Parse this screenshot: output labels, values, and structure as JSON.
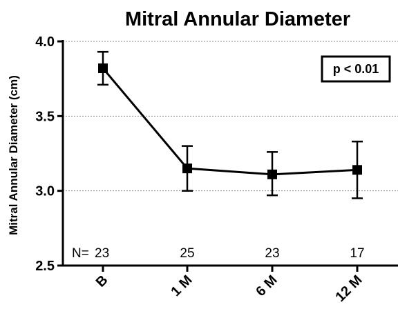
{
  "chart_data": {
    "type": "line",
    "title": "Mitral Annular Diameter",
    "xlabel": "",
    "ylabel": "Mitral Annular Diameter (cm)",
    "categories": [
      "B",
      "1 M",
      "6 M",
      "12 M"
    ],
    "series": [
      {
        "values": [
          3.82,
          3.15,
          3.11,
          3.14
        ],
        "error_low": [
          3.71,
          3.0,
          2.97,
          2.95
        ],
        "error_high": [
          3.93,
          3.3,
          3.26,
          3.33
        ]
      }
    ],
    "n_prefix": "N=",
    "n_values": [
      "23",
      "25",
      "23",
      "17"
    ],
    "annotation": "p < 0.01",
    "ylim": [
      2.5,
      4.0
    ],
    "yticks": [
      "2.5",
      "3.0",
      "3.5",
      "4.0"
    ],
    "grid": true,
    "grid_style": "dashed-horizontal",
    "marker": "square",
    "colors": {
      "line": "#000000",
      "grid": "#888888",
      "axis": "#000000"
    }
  }
}
